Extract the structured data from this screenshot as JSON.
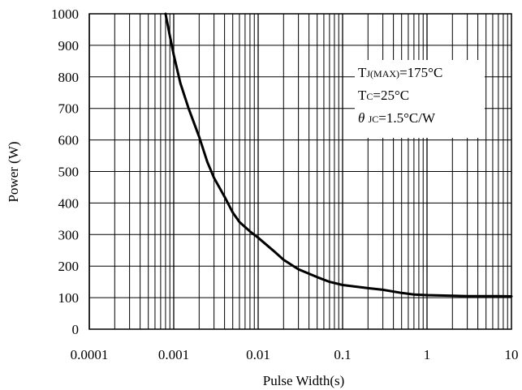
{
  "chart_data": {
    "type": "line",
    "xscale": "log",
    "xlim": [
      0.0001,
      10
    ],
    "ylim": [
      0,
      1000
    ],
    "xlabel": "Pulse Width(s)",
    "ylabel": "Power (W)",
    "xtick_labels": [
      "0.0001",
      "0.001",
      "0.01",
      "0.1",
      "1",
      "10"
    ],
    "ytick_labels": [
      "0",
      "100",
      "200",
      "300",
      "400",
      "500",
      "600",
      "700",
      "800",
      "900",
      "1000"
    ],
    "grid": true,
    "annotation": {
      "line1": {
        "main": "T",
        "sub": "J(MAX)",
        "rest": "=175°C"
      },
      "line2": {
        "main": "T",
        "sub": "C",
        "rest": "=25°C"
      },
      "line3": {
        "main": "θ ",
        "sub": "JC",
        "rest": "=1.5°C/W"
      }
    },
    "series": [
      {
        "x": [
          0.0008,
          0.0009,
          0.001,
          0.0012,
          0.0015,
          0.002,
          0.0025,
          0.003,
          0.004,
          0.005,
          0.006,
          0.008,
          0.01,
          0.015,
          0.02,
          0.03,
          0.05,
          0.07,
          0.1,
          0.2,
          0.3,
          0.5,
          0.7,
          1,
          2,
          3,
          5,
          7,
          10
        ],
        "y": [
          1000,
          930,
          870,
          780,
          700,
          610,
          530,
          480,
          420,
          370,
          340,
          310,
          290,
          250,
          220,
          190,
          165,
          150,
          140,
          130,
          125,
          115,
          110,
          108,
          106,
          105,
          105,
          105,
          104
        ]
      }
    ]
  },
  "colors": {
    "line": "#000000",
    "grid": "#000000",
    "background": "#ffffff"
  }
}
